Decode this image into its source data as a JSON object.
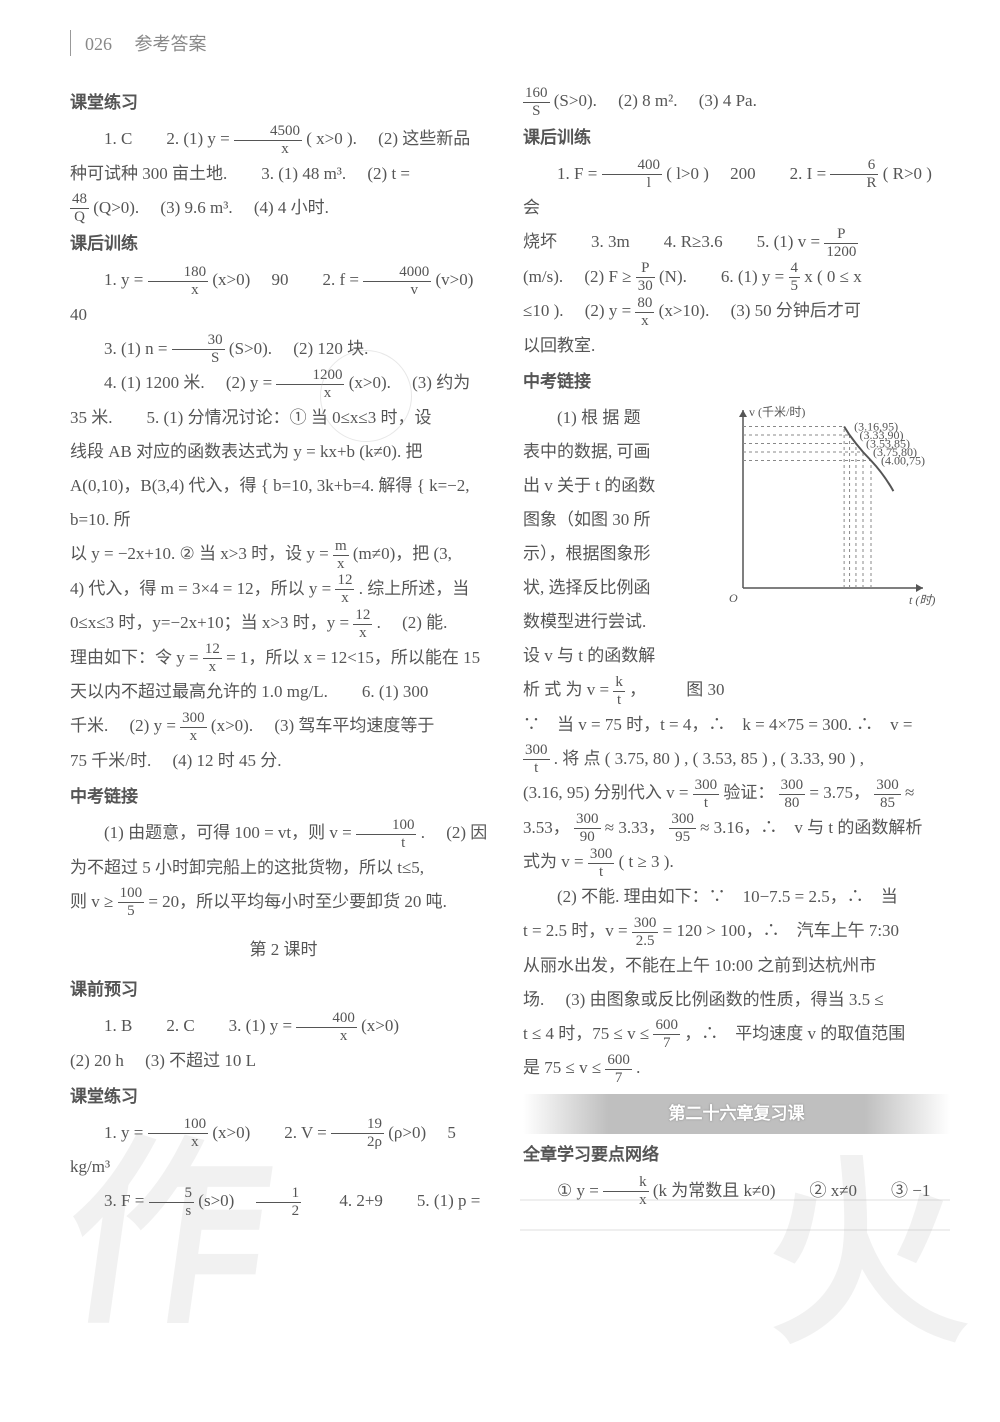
{
  "header": {
    "page_num": "026",
    "title": "参考答案"
  },
  "left": {
    "s1_title": "课堂练习",
    "s1_p1_a": "1. C　　2. (1) y =",
    "s1_f1n": "4500",
    "s1_f1d": "x",
    "s1_p1_b": "( x>0 ).　 (2) 这些新品",
    "s1_p2_a": "种可试种 300 亩土地.　　3. (1) 48 m³.　 (2) t =",
    "s1_f2n": "48",
    "s1_f2d": "Q",
    "s1_p2_b": "(Q>0).　 (3) 9.6 m³.　 (4) 4 小时.",
    "s2_title": "课后训练",
    "s2_p1_a": "1. y =",
    "s2_f1n": "180",
    "s2_f1d": "x",
    "s2_p1_b": "(x>0)　 90　　2. f =",
    "s2_f2n": "4000",
    "s2_f2d": "v",
    "s2_p1_c": "(v>0)　 40",
    "s2_p2_a": "3. (1) n =",
    "s2_f3n": "30",
    "s2_f3d": "S",
    "s2_p2_b": "(S>0).　 (2) 120 块.",
    "s2_p3_a": "4. (1) 1200 米.　 (2) y =",
    "s2_f4n": "1200",
    "s2_f4d": "x",
    "s2_p3_b": "(x>0).　 (3) 约为",
    "s2_p4": "35 米.　　5. (1) 分情况讨论：① 当 0≤x≤3 时，设",
    "s2_p5": "线段 AB 对应的函数表达式为 y = kx+b (k≠0). 把",
    "s2_p6": "A(0,10)，B(3,4) 代入，得 { b=10, 3k+b=4. 解得 { k=−2, b=10. 所",
    "s2_p7_a": "以 y = −2x+10. ② 当 x>3 时，设 y =",
    "s2_f5n": "m",
    "s2_f5d": "x",
    "s2_p7_b": "(m≠0)，把 (3,",
    "s2_p8_a": "4) 代入，得 m = 3×4 = 12，所以 y =",
    "s2_f6n": "12",
    "s2_f6d": "x",
    "s2_p8_b": ". 综上所述，当",
    "s2_p9_a": "0≤x≤3 时，y=−2x+10；当 x>3 时，y =",
    "s2_f7n": "12",
    "s2_f7d": "x",
    "s2_p9_b": ".　 (2) 能.",
    "s2_p10_a": "理由如下：令 y =",
    "s2_f8n": "12",
    "s2_f8d": "x",
    "s2_p10_b": "= 1，所以 x = 12<15，所以能在 15",
    "s2_p11": "天以内不超过最高允许的 1.0 mg/L.　　6. (1) 300",
    "s2_p12_a": "千米.　 (2) y =",
    "s2_f9n": "300",
    "s2_f9d": "x",
    "s2_p12_b": "(x>0).　 (3) 驾车平均速度等于",
    "s2_p13": "75 千米/时.　 (4) 12 时 45 分.",
    "s3_title": "中考链接",
    "s3_p1_a": "(1) 由题意，可得 100 = vt，则 v =",
    "s3_f1n": "100",
    "s3_f1d": "t",
    "s3_p1_b": ".　 (2) 因",
    "s3_p2": "为不超过 5 小时卸完船上的这批货物，所以 t≤5,",
    "s3_p3_a": "则 v ≥",
    "s3_f2n": "100",
    "s3_f2d": "5",
    "s3_p3_b": " = 20，所以平均每小时至少要卸货 20 吨.",
    "lesson2": "第 2 课时",
    "s4_title": "课前预习",
    "s4_p1_a": "1. B　　2. C　　3. (1) y =",
    "s4_f1n": "400",
    "s4_f1d": "x",
    "s4_p1_b": "(x>0)",
    "s4_p2": "(2) 20 h　 (3) 不超过 10 L",
    "s5_title": "课堂练习",
    "s5_p1_a": "1. y =",
    "s5_f1n": "100",
    "s5_f1d": "x",
    "s5_p1_b": "(x>0)　　2. V =",
    "s5_f2n": "19",
    "s5_f2d": "2ρ",
    "s5_p1_c": "(ρ>0)　 5 kg/m³",
    "s5_p2_a": "3. F =",
    "s5_f3n": "5",
    "s5_f3d": "s",
    "s5_p2_b": "(s>0)　",
    "s5_f4n": "1",
    "s5_f4d": "2",
    "s5_p2_c": "　　4. 2+9　　5. (1) p ="
  },
  "right": {
    "r0_f1n": "160",
    "r0_f1d": "S",
    "r0_a": "(S>0).　 (2) 8 m².　 (3) 4 Pa.",
    "r1_title": "课后训练",
    "r1_p1_a": "1. F =",
    "r1_f1n": "400",
    "r1_f1d": "l",
    "r1_p1_b": "( l>0 )　 200　　2. I =",
    "r1_f2n": "6",
    "r1_f2d": "R",
    "r1_p1_c": "( R>0 )　 会",
    "r1_p2_a": "烧坏　　3. 3m　　4. R≥3.6　　5. (1) v =",
    "r1_f3n": "P",
    "r1_f3d": "1200",
    "r1_p3_a": "(m/s).　 (2) F ≥",
    "r1_f4n": "P",
    "r1_f4d": "30",
    "r1_p3_b": "(N).　　6. (1) y =",
    "r1_f5n": "4",
    "r1_f5d": "5",
    "r1_p3_c": "x ( 0 ≤ x",
    "r1_p4_a": "≤10 ).　 (2) y =",
    "r1_f6n": "80",
    "r1_f6d": "x",
    "r1_p4_b": "(x>10).　 (3) 50 分钟后才可",
    "r1_p5": "以回教室.",
    "r2_title": "中考链接",
    "r2_p1": "(1) 根 据 题",
    "r2_p2": "表中的数据, 可画",
    "r2_p3": "出 v 关于 t 的函数",
    "r2_p4": "图象（如图 30 所",
    "r2_p5": "示），根据图象形",
    "r2_p6": "状, 选择反比例函",
    "r2_p7": "数模型进行尝试.",
    "r2_p8": "设 v 与 t 的函数解",
    "r2_p9_a": "析 式 为 v =",
    "r2_f1n": "k",
    "r2_f1d": "t",
    "r2_p9_b": "，",
    "r2_caption": "图 30",
    "r2_p10": "∵　当 v = 75 时，t = 4，∴　k = 4×75 = 300.  ∴　v =",
    "r2_p11_a": "",
    "r2_f2n": "300",
    "r2_f2d": "t",
    "r2_p11_b": ". 将 点 ( 3.75, 80 ) , ( 3.53, 85 ) , ( 3.33, 90 ) ,",
    "r2_p12_a": "(3.16, 95) 分别代入 v =",
    "r2_f3n": "300",
    "r2_f3d": "t",
    "r2_p12_b": "验证：",
    "r2_f4n": "300",
    "r2_f4d": "80",
    "r2_p12_c": " = 3.75，",
    "r2_f5n": "300",
    "r2_f5d": "85",
    "r2_p12_d": " ≈",
    "r2_p13_a": "3.53，",
    "r2_f6n": "300",
    "r2_f6d": "90",
    "r2_p13_b": " ≈ 3.33，",
    "r2_f7n": "300",
    "r2_f7d": "95",
    "r2_p13_c": " ≈ 3.16，∴　v 与 t 的函数解析",
    "r2_p14_a": "式为 v =",
    "r2_f8n": "300",
    "r2_f8d": "t",
    "r2_p14_b": "( t ≥ 3 ).",
    "r2_p15": "(2) 不能. 理由如下：∵　10−7.5 = 2.5，∴　当",
    "r2_p16_a": "t = 2.5 时，v =",
    "r2_f9n": "300",
    "r2_f9d": "2.5",
    "r2_p16_b": " = 120 > 100，∴　汽车上午 7:30",
    "r2_p17": "从丽水出发，不能在上午 10:00 之前到达杭州市",
    "r2_p18": "场.　 (3) 由图象或反比例函数的性质，得当 3.5 ≤",
    "r2_p19_a": "t ≤ 4 时，75 ≤ v ≤",
    "r2_f10n": "600",
    "r2_f10d": "7",
    "r2_p19_b": "，∴　平均速度 v 的取值范围",
    "r2_p20_a": "是 75 ≤ v ≤",
    "r2_f11n": "600",
    "r2_f11d": "7",
    "r2_p20_b": ".",
    "chapter": "第二十六章复习课",
    "r3_title": "全章学习要点网络",
    "r3_p1_a": "① y =",
    "r3_f1n": "k",
    "r3_f1d": "x",
    "r3_p1_b": "(k 为常数且 k≠0)　　② x≠0　　③ −1"
  },
  "graph": {
    "y_label": "v (千米/时)",
    "x_label": "t (时)",
    "origin": "O",
    "points": [
      {
        "t": 3.16,
        "v": 95,
        "label": "(3.16,95)"
      },
      {
        "t": 3.33,
        "v": 90,
        "label": "(3.33,90)"
      },
      {
        "t": 3.53,
        "v": 85,
        "label": "(3.53,85)"
      },
      {
        "t": 3.75,
        "v": 80,
        "label": "(3.75,80)"
      },
      {
        "t": 4.0,
        "v": 75,
        "label": "(4.00,75)"
      }
    ],
    "axis_color": "#555555",
    "dash_color": "#888888",
    "curve_color": "#555555",
    "x_range": [
      0,
      5
    ],
    "y_range": [
      0,
      100
    ],
    "label_fontsize": 12
  }
}
